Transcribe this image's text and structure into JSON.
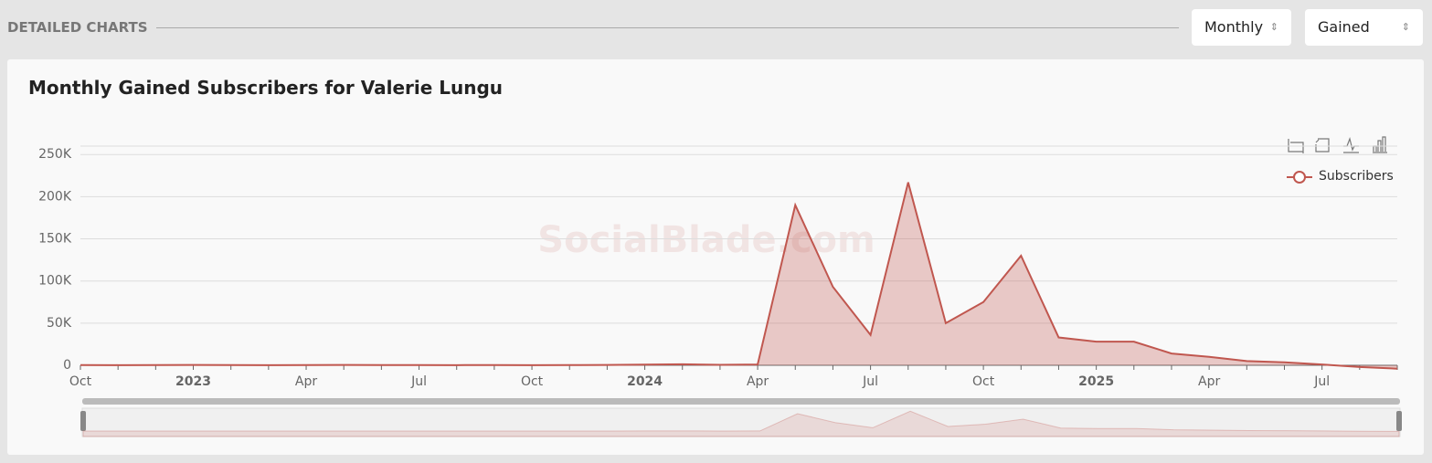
{
  "header": {
    "title": "DETAILED CHARTS",
    "period_select": "Monthly",
    "metric_select": "Gained"
  },
  "chart_data": {
    "type": "area",
    "title": "Monthly Gained Subscribers for Valerie Lungu",
    "watermark": "SocialBlade.com",
    "categories": [
      "Oct",
      null,
      null,
      "2023",
      null,
      null,
      "Apr",
      null,
      null,
      "Jul",
      null,
      null,
      "Oct",
      null,
      null,
      "2024",
      null,
      null,
      "Apr",
      null,
      null,
      "Jul",
      null,
      null,
      "Oct",
      null,
      null,
      "2025",
      null,
      null,
      "Apr",
      null,
      null,
      "Jul",
      null,
      null
    ],
    "series": [
      {
        "name": "Subscribers",
        "color": "#c0574f",
        "values": [
          300,
          200,
          300,
          400,
          300,
          200,
          300,
          400,
          300,
          300,
          200,
          300,
          200,
          300,
          400,
          800,
          1200,
          600,
          1000,
          190000,
          93000,
          36000,
          217000,
          50000,
          75000,
          130000,
          33000,
          28000,
          28000,
          14000,
          10000,
          5000,
          3500,
          1000,
          -2000,
          -4000
        ]
      }
    ],
    "ylim": [
      0,
      260000
    ],
    "yticks": [
      0,
      {
        "value": 50000,
        "label": "50K"
      },
      {
        "value": 100000,
        "label": "100K"
      },
      {
        "value": 150000,
        "label": "150K"
      },
      {
        "value": 200000,
        "label": "200K"
      },
      {
        "value": 250000,
        "label": "250K"
      }
    ],
    "grid": true,
    "legend": "top-right"
  }
}
